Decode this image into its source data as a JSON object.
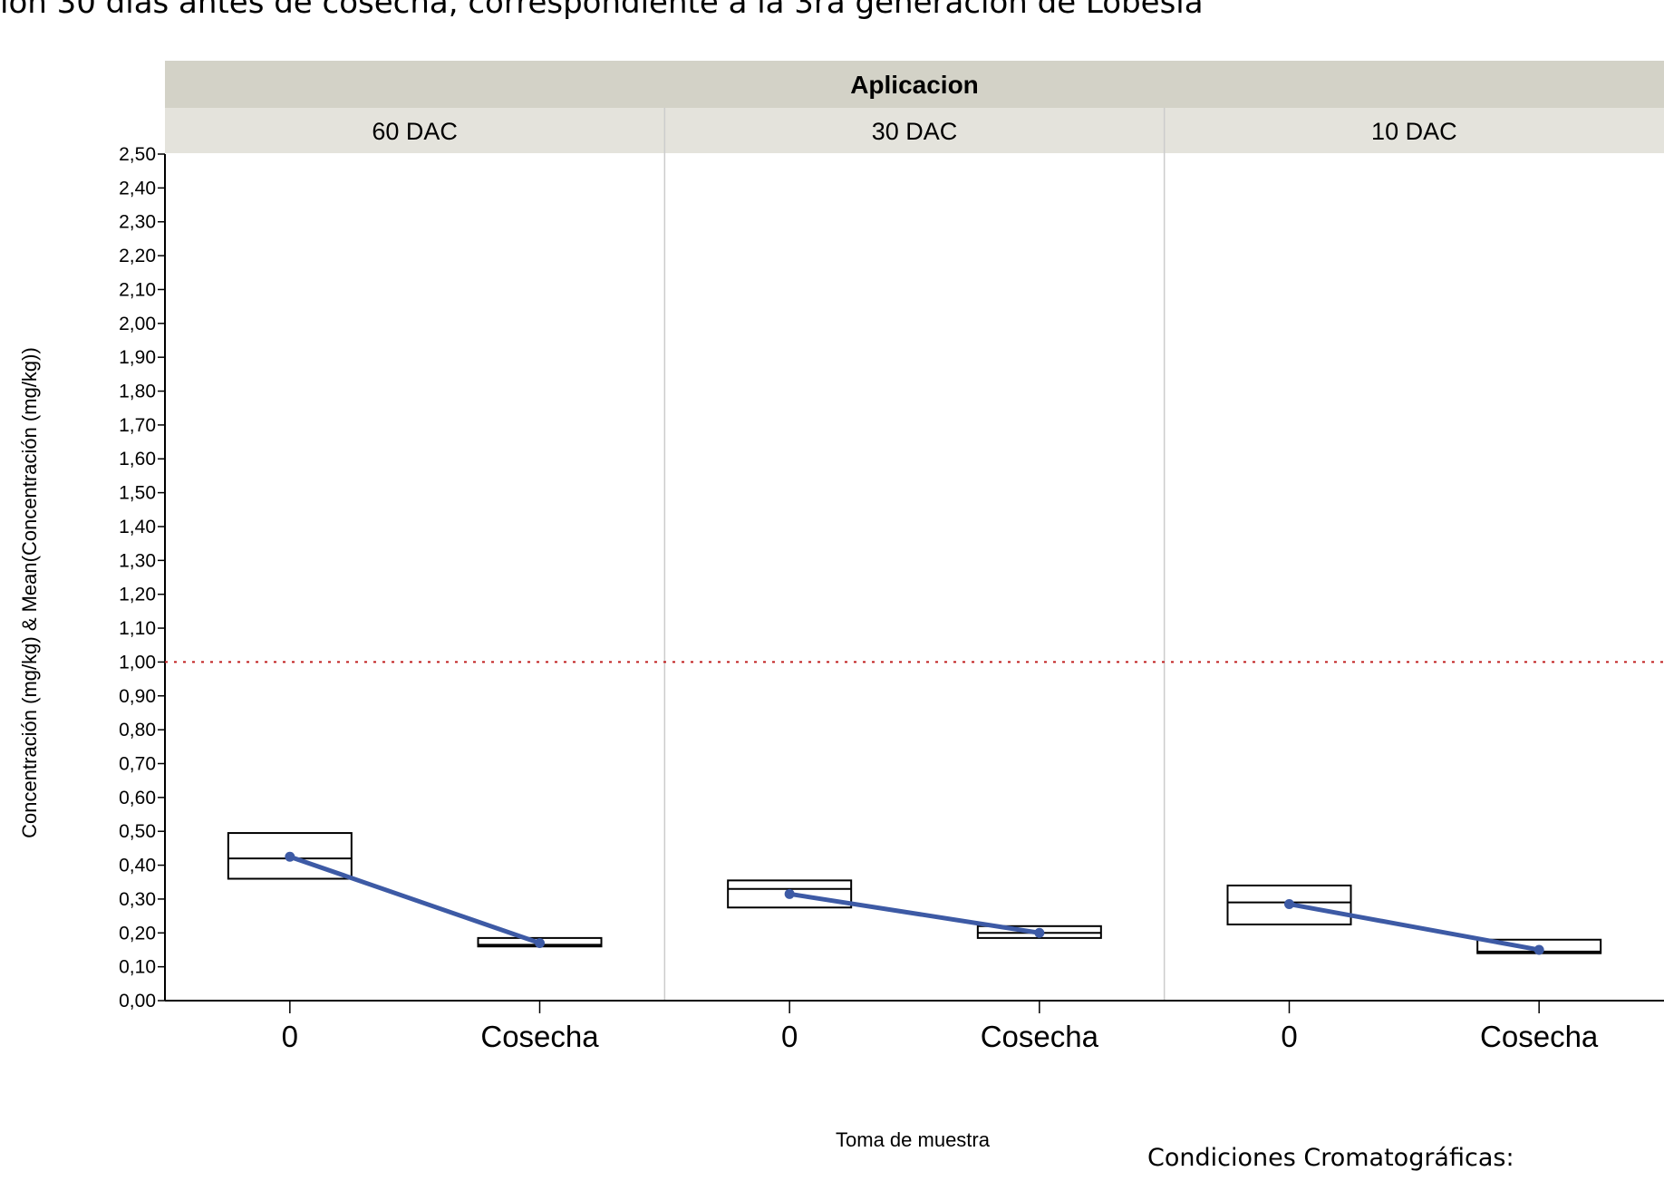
{
  "top_caption": "ión 30 días antes de cosecha, correspondiente a la 3ra generación de Lobesia",
  "bottom_note": "Condiciones  Cromatográficas:",
  "chart_data": {
    "type": "box",
    "facet_title": "Aplicacion",
    "facets": [
      "60 DAC",
      "30 DAC",
      "10 DAC"
    ],
    "categories": [
      "0",
      "Cosecha"
    ],
    "ylabel": "Concentración (mg/kg) & Mean(Concentración (mg/kg))",
    "xlabel": "Toma de muestra",
    "ylim": [
      0,
      2.5
    ],
    "yticks": [
      "0,00",
      "0,10",
      "0,20",
      "0,30",
      "0,40",
      "0,50",
      "0,60",
      "0,70",
      "0,80",
      "0,90",
      "1,00",
      "1,10",
      "1,20",
      "1,30",
      "1,40",
      "1,50",
      "1,60",
      "1,70",
      "1,80",
      "1,90",
      "2,00",
      "2,10",
      "2,20",
      "2,30",
      "2,40",
      "2,50"
    ],
    "reference_line": 1.0,
    "boxes": [
      [
        {
          "q1": 0.36,
          "median": 0.42,
          "q3": 0.495
        },
        {
          "q1": 0.16,
          "median": 0.165,
          "q3": 0.185
        }
      ],
      [
        {
          "q1": 0.275,
          "median": 0.33,
          "q3": 0.355
        },
        {
          "q1": 0.185,
          "median": 0.2,
          "q3": 0.22
        }
      ],
      [
        {
          "q1": 0.225,
          "median": 0.29,
          "q3": 0.34
        },
        {
          "q1": 0.14,
          "median": 0.145,
          "q3": 0.18
        }
      ]
    ],
    "means": [
      [
        0.425,
        0.17
      ],
      [
        0.315,
        0.2
      ],
      [
        0.285,
        0.15
      ]
    ],
    "colors": {
      "mean_line": "#3d5aa5",
      "reference_line": "#c02020",
      "header_bg": "#e4e3dc",
      "header_title_bg": "#d3d2c7",
      "facet_divider": "#cccccc"
    }
  }
}
